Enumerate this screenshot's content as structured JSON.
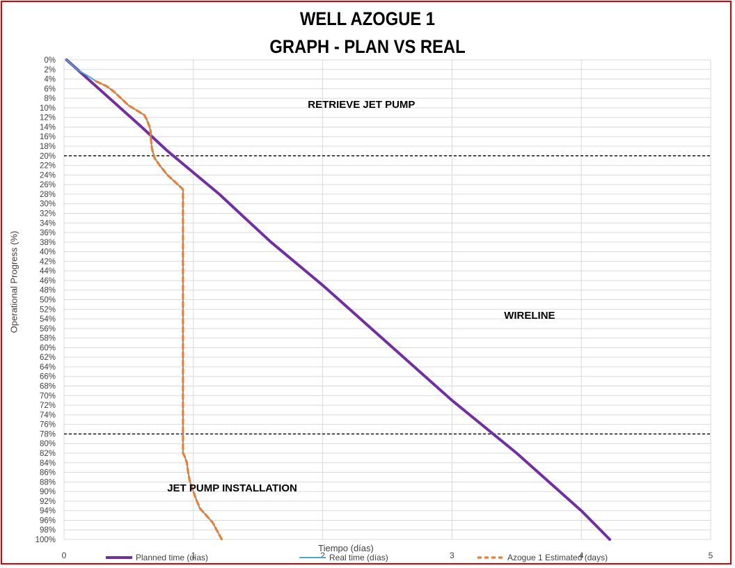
{
  "chart_data": {
    "type": "line",
    "title": "WELL AZOGUE 1",
    "subtitle": "GRAPH  - PLAN VS REAL",
    "xlabel": "Tiempo (días)",
    "ylabel": "Operational Progress (%)",
    "xlim": [
      0,
      5
    ],
    "ylim": [
      0,
      100
    ],
    "y_inverted": true,
    "grid": true,
    "legend_position": "bottom",
    "x_ticks": [
      0,
      1,
      2,
      3,
      4,
      5
    ],
    "y_ticks": [
      "0%",
      "2%",
      "4%",
      "6%",
      "8%",
      "10%",
      "12%",
      "14%",
      "16%",
      "18%",
      "20%",
      "22%",
      "24%",
      "26%",
      "28%",
      "30%",
      "32%",
      "34%",
      "36%",
      "38%",
      "40%",
      "42%",
      "44%",
      "46%",
      "48%",
      "50%",
      "52%",
      "54%",
      "56%",
      "58%",
      "60%",
      "62%",
      "64%",
      "66%",
      "68%",
      "70%",
      "72%",
      "74%",
      "76%",
      "78%",
      "80%",
      "82%",
      "84%",
      "86%",
      "88%",
      "90%",
      "92%",
      "94%",
      "96%",
      "98%",
      "100%"
    ],
    "series": [
      {
        "name": "Planned time (días)",
        "color": "#7030a0",
        "style": "solid",
        "x": [
          0.02,
          0.6,
          0.8,
          1.2,
          1.4,
          1.6,
          2.0,
          2.5,
          3.0,
          3.5,
          4.0,
          4.22
        ],
        "y": [
          0,
          14,
          19,
          28,
          33,
          38,
          47,
          59,
          71,
          82,
          94,
          100
        ]
      },
      {
        "name": "Real time (días)",
        "color": "#4aa8c8",
        "style": "solid",
        "x": [
          0.02,
          0.1,
          0.2,
          0.25,
          0.33,
          0.38,
          0.44,
          0.5,
          0.56,
          0.62,
          0.64,
          0.66,
          0.67,
          0.67,
          0.68,
          0.7,
          0.74,
          0.8,
          0.86,
          0.92,
          0.92,
          0.92,
          0.92,
          0.92,
          0.92,
          0.92,
          0.93,
          0.95,
          0.96,
          0.97,
          0.98,
          1.0,
          1.02,
          1.05,
          1.1,
          1.15,
          1.18,
          1.22
        ],
        "y": [
          0,
          2,
          3.6,
          4.5,
          5.5,
          6.5,
          8,
          9.5,
          10.5,
          11.5,
          12.5,
          13.8,
          15,
          16,
          18.5,
          20.5,
          22,
          24,
          25.5,
          27,
          35,
          50,
          65,
          75,
          80,
          82,
          82.5,
          84,
          86,
          87.5,
          88.5,
          90,
          91.5,
          93.5,
          95,
          96.5,
          98,
          100
        ]
      },
      {
        "name": "Azogue 1 Estimated (days)",
        "color": "#ed7d31",
        "style": "dashed",
        "x": [
          0.25,
          0.33,
          0.38,
          0.44,
          0.5,
          0.56,
          0.62,
          0.64,
          0.66,
          0.67,
          0.67,
          0.68,
          0.7,
          0.74,
          0.8,
          0.86,
          0.92,
          0.92,
          0.92,
          0.92,
          0.92,
          0.92,
          0.92,
          0.93,
          0.95,
          0.96,
          0.97,
          0.98,
          1.0,
          1.02,
          1.05,
          1.1,
          1.15,
          1.18,
          1.22
        ],
        "y": [
          4.5,
          5.5,
          6.5,
          8,
          9.5,
          10.5,
          11.5,
          12.5,
          13.8,
          15,
          16,
          18.5,
          20.5,
          22,
          24,
          25.5,
          27,
          35,
          50,
          65,
          75,
          80,
          82,
          82.5,
          84,
          86,
          87.5,
          88.5,
          90,
          91.5,
          93.5,
          95,
          96.5,
          98,
          100
        ]
      }
    ],
    "reference_lines": [
      {
        "y": 20,
        "style": "dashed",
        "color": "#000000"
      },
      {
        "y": 78,
        "style": "dashed",
        "color": "#000000"
      }
    ],
    "annotations": [
      {
        "text": "RETRIEVE JET PUMP",
        "x": 2.3,
        "y": 10
      },
      {
        "text": "WIRELINE",
        "x": 3.6,
        "y": 54
      },
      {
        "text": "JET PUMP INSTALLATION",
        "x": 1.3,
        "y": 90
      }
    ]
  }
}
